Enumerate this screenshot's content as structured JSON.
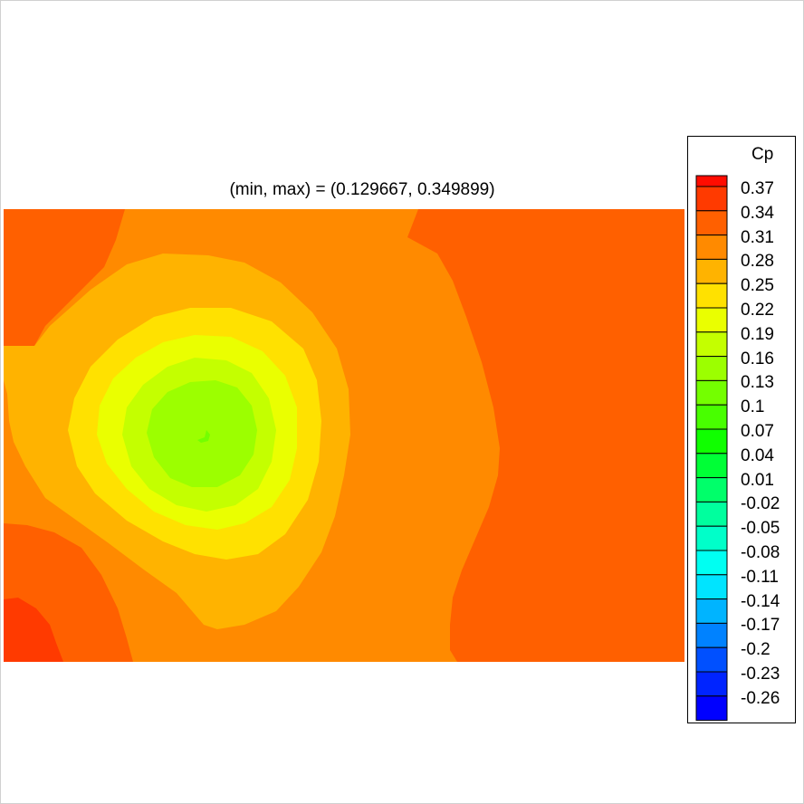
{
  "title": "(min, max) = (0.129667, 0.349899)",
  "chart_data": {
    "type": "heatmap",
    "title": "(min, max) = (0.129667, 0.349899)",
    "variable": "Cp",
    "min": 0.129667,
    "max": 0.349899,
    "legend_placement": "right",
    "levels": [
      "0.37",
      "0.34",
      "0.31",
      "0.28",
      "0.25",
      "0.22",
      "0.19",
      "0.16",
      "0.13",
      "0.1",
      "0.07",
      "0.04",
      "0.01",
      "-0.02",
      "-0.05",
      "-0.08",
      "-0.11",
      "-0.14",
      "-0.17",
      "-0.2",
      "-0.23",
      "-0.26"
    ],
    "level_colors": [
      "#ff3a00",
      "#ff6000",
      "#ff8a00",
      "#ffb300",
      "#ffe100",
      "#eaff00",
      "#c4ff00",
      "#9cff00",
      "#74ff00",
      "#48ff00",
      "#10ff00",
      "#00ff36",
      "#00ff6a",
      "#00ff9e",
      "#00ffc9",
      "#00fff2",
      "#00e4ff",
      "#00b4ff",
      "#0082ff",
      "#0050ff",
      "#0024ff",
      "#0000ff"
    ],
    "top_color": "#ff0c00"
  },
  "colors": {
    "band_034": "#ff6000",
    "band_031": "#ff8a00",
    "band_028": "#ffb300",
    "band_025": "#ffe100",
    "band_022": "#eaff00",
    "band_019": "#c4ff00",
    "band_016": "#9cff00",
    "band_037": "#ff3a00"
  }
}
